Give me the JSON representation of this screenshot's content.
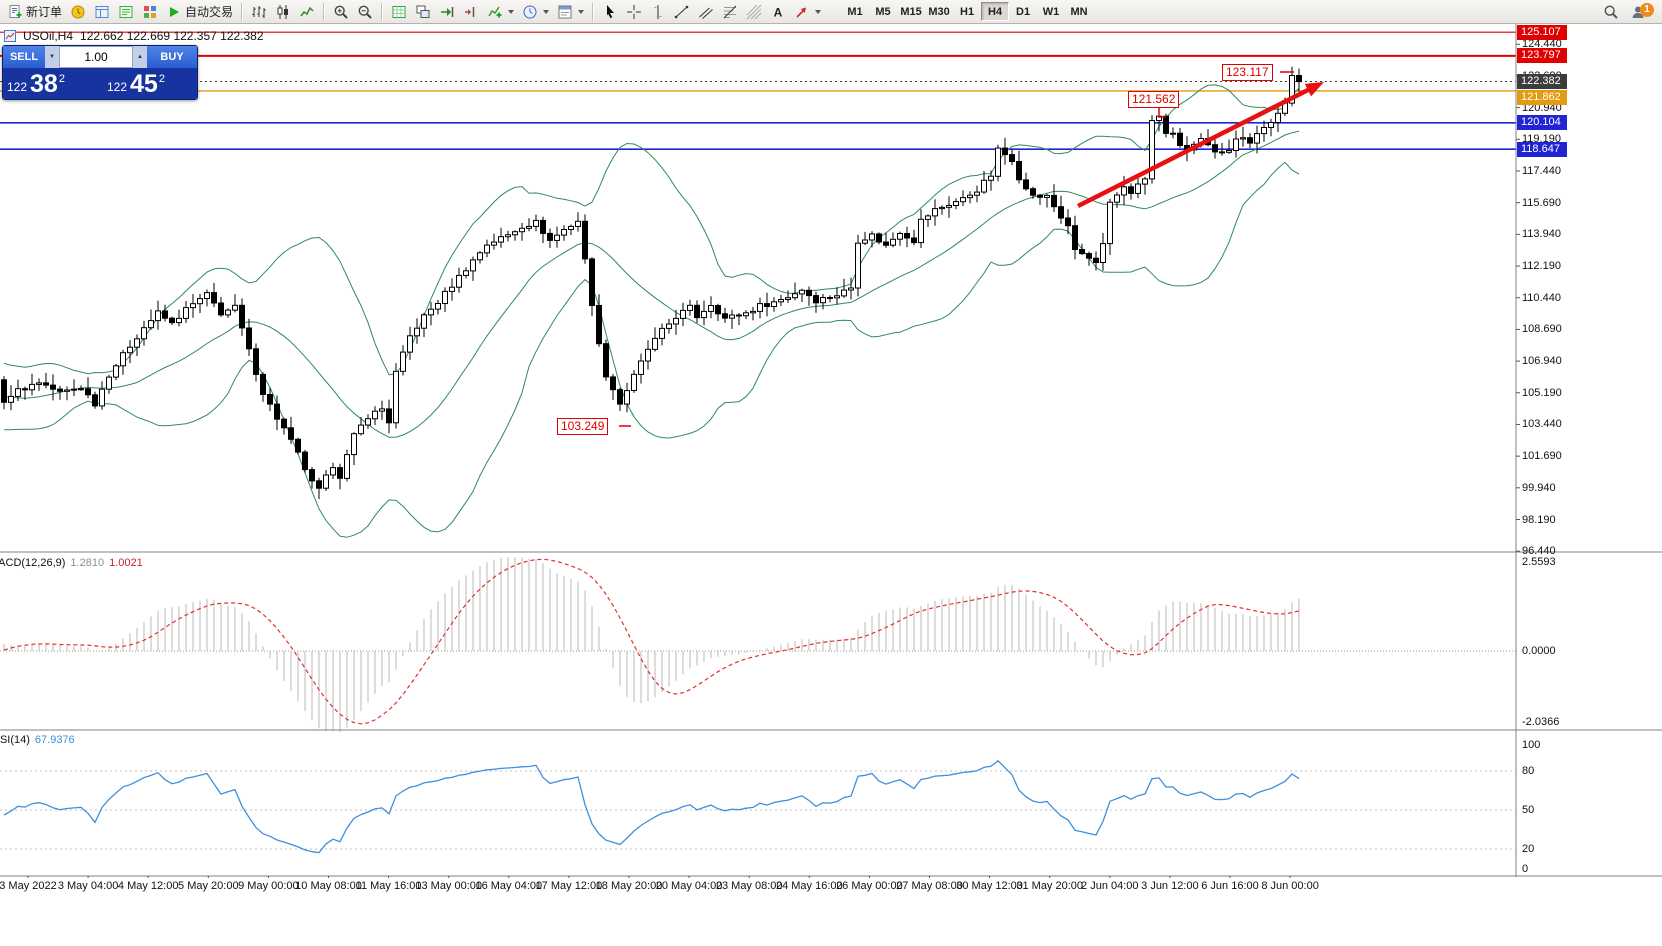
{
  "toolbar": {
    "new_order": {
      "icon": "new-order",
      "label": "新订单"
    },
    "window_buttons": [
      {
        "icon": "market-watch"
      },
      {
        "icon": "data-window"
      },
      {
        "icon": "navigator"
      },
      {
        "icon": "terminal"
      }
    ],
    "autotrading": {
      "icon": "autotrading",
      "label": "自动交易"
    },
    "chart_type_buttons": [
      {
        "icon": "bar-chart"
      },
      {
        "icon": "candlesticks"
      },
      {
        "icon": "line-chart"
      }
    ],
    "zoom_buttons": [
      {
        "icon": "zoom-in"
      },
      {
        "icon": "zoom-out"
      }
    ],
    "layout_buttons": [
      {
        "icon": "new-chart"
      },
      {
        "icon": "tile-windows"
      },
      {
        "icon": "auto-scroll"
      },
      {
        "icon": "chart-shift"
      }
    ],
    "dropdown_buttons": [
      {
        "icon": "indicators",
        "dropdown": true
      },
      {
        "icon": "periods",
        "dropdown": true
      },
      {
        "icon": "templates",
        "dropdown": true
      }
    ],
    "drawing_buttons": [
      {
        "icon": "cursor"
      },
      {
        "icon": "crosshair"
      },
      {
        "icon": "vertical-line"
      },
      {
        "icon": "trendline"
      },
      {
        "icon": "equidistant-channel"
      },
      {
        "icon": "fibonacci"
      },
      {
        "icon": "gann-grid"
      },
      {
        "icon": "text"
      },
      {
        "icon": "arrows",
        "dropdown": true
      }
    ],
    "timeframes": [
      "M1",
      "M5",
      "M15",
      "M30",
      "H1",
      "H4",
      "D1",
      "W1",
      "MN"
    ],
    "active_timeframe": "H4",
    "search": {
      "icon": "search"
    },
    "notifications": {
      "icon": "community",
      "badge": "1"
    }
  },
  "chart": {
    "symbol_period": "USOil,H4",
    "ohlc_text": "122.662 122.669 122.357 122.382"
  },
  "trade_panel": {
    "sell_label": "SELL",
    "buy_label": "BUY",
    "volume": "1.00",
    "spin_down": "▼",
    "spin_up": "▲",
    "bid": {
      "big": "122",
      "pips": "38",
      "pt": "2"
    },
    "ask": {
      "big": "122",
      "pips": "45",
      "pt": "2"
    }
  },
  "annotations": [
    {
      "text": "123.117"
    },
    {
      "text": "121.562"
    },
    {
      "text": "103.249"
    }
  ],
  "price_axis": {
    "ticks": [
      "124.440",
      "122.690",
      "120.940",
      "119.190",
      "117.440",
      "115.690",
      "113.940",
      "112.190",
      "110.440",
      "108.690",
      "106.940",
      "105.190",
      "103.440",
      "101.690",
      "99.940",
      "98.190",
      "96.440"
    ],
    "levels": [
      {
        "text": "125.107",
        "value": 125.107,
        "type": "red_level",
        "width": 1.2,
        "dash": false
      },
      {
        "text": "123.797",
        "value": 123.797,
        "type": "red_level",
        "width": 2,
        "dash": false
      },
      {
        "text": "122.382",
        "value": 122.382,
        "type": "current_price",
        "width": 1,
        "dash": true
      },
      {
        "text": "121.862",
        "value": 121.862,
        "type": "orange_level",
        "width": 1.4,
        "dash": false
      },
      {
        "text": "120.104",
        "value": 120.104,
        "type": "blue_level",
        "width": 1.6,
        "dash": false
      },
      {
        "text": "118.647",
        "value": 118.647,
        "type": "blue_level",
        "width": 1.6,
        "dash": false
      }
    ]
  },
  "time_axis": {
    "labels": [
      "3 May 2022",
      "3 May 04:00",
      "4 May 12:00",
      "5 May 20:00",
      "9 May 00:00",
      "10 May 08:00",
      "11 May 16:00",
      "13 May 00:00",
      "16 May 04:00",
      "17 May 12:00",
      "18 May 20:00",
      "20 May 04:00",
      "23 May 08:00",
      "24 May 16:00",
      "26 May 00:00",
      "27 May 08:00",
      "30 May 12:00",
      "31 May 20:00",
      "2 Jun 04:00",
      "3 Jun 12:00",
      "6 Jun 16:00",
      "8 Jun 00:00"
    ]
  },
  "macd_panel": {
    "name": "MACD(12,26,9)",
    "value1": "1.2810",
    "value2": "1.0021",
    "axis_labels": [
      "2.5593",
      "0.0000",
      "-2.0366"
    ]
  },
  "rsi_panel": {
    "name": "RSI(14)",
    "value": "67.9376",
    "axis_labels": [
      "100",
      "80",
      "50",
      "20",
      "0"
    ],
    "levels": [
      80,
      50,
      20
    ]
  },
  "colors": {
    "red_level": "#e00000",
    "orange_level": "#e39c11",
    "blue_level": "#2323d6",
    "current_price": "#3c3c3c",
    "bands": "#2E8B57",
    "macd_hist": "#b9b9b9",
    "macd_signal": "#e03030",
    "rsi_line": "#3f8fde",
    "arrow": "#e81010",
    "annotation": "#e00000"
  },
  "chart_data": {
    "type": "candlestick",
    "symbol": "USOil",
    "period": "H4",
    "indicators": [
      "Bollinger Bands(20,2)",
      "MACD(12,26,9)",
      "RSI(14)"
    ],
    "price_range": [
      96.44,
      125.107
    ],
    "n_candles": 186,
    "last_close": 122.382,
    "bollinger_period": 20,
    "bollinger_deviation": 2,
    "close_path": [
      [
        0,
        104.8
      ],
      [
        2,
        105.3
      ],
      [
        5,
        105.8
      ],
      [
        8,
        105.2
      ],
      [
        11,
        105.5
      ],
      [
        13,
        104.6
      ],
      [
        15,
        106.2
      ],
      [
        18,
        107.8
      ],
      [
        20,
        108.8
      ],
      [
        22,
        109.6
      ],
      [
        24,
        109.0
      ],
      [
        26,
        109.8
      ],
      [
        29,
        110.6
      ],
      [
        31,
        109.6
      ],
      [
        33,
        109.9
      ],
      [
        35,
        107.5
      ],
      [
        37,
        105.2
      ],
      [
        39,
        103.8
      ],
      [
        40,
        103.2
      ],
      [
        42,
        101.8
      ],
      [
        44,
        100.2
      ],
      [
        45,
        99.8
      ],
      [
        47,
        101.2
      ],
      [
        48,
        100.6
      ],
      [
        50,
        102.8
      ],
      [
        52,
        103.9
      ],
      [
        54,
        104.3
      ],
      [
        55,
        103.6
      ],
      [
        56,
        106.3
      ],
      [
        58,
        108.3
      ],
      [
        60,
        109.4
      ],
      [
        62,
        110.2
      ],
      [
        65,
        111.6
      ],
      [
        67,
        112.5
      ],
      [
        69,
        113.4
      ],
      [
        72,
        113.9
      ],
      [
        74,
        114.4
      ],
      [
        76,
        114.6
      ],
      [
        78,
        113.6
      ],
      [
        80,
        114.2
      ],
      [
        82,
        114.7
      ],
      [
        83,
        112.5
      ],
      [
        85,
        107.8
      ],
      [
        86,
        106.2
      ],
      [
        88,
        104.6
      ],
      [
        90,
        106.1
      ],
      [
        92,
        107.6
      ],
      [
        94,
        108.6
      ],
      [
        96,
        109.4
      ],
      [
        98,
        109.9
      ],
      [
        99,
        109.4
      ],
      [
        101,
        110.1
      ],
      [
        103,
        109.3
      ],
      [
        106,
        109.6
      ],
      [
        108,
        110.0
      ],
      [
        110,
        110.2
      ],
      [
        112,
        110.5
      ],
      [
        114,
        110.9
      ],
      [
        116,
        110.3
      ],
      [
        119,
        110.6
      ],
      [
        121,
        111.0
      ],
      [
        122,
        113.6
      ],
      [
        124,
        113.9
      ],
      [
        126,
        113.3
      ],
      [
        128,
        114.1
      ],
      [
        130,
        113.6
      ],
      [
        131,
        114.7
      ],
      [
        133,
        115.3
      ],
      [
        135,
        115.6
      ],
      [
        137,
        115.9
      ],
      [
        139,
        116.4
      ],
      [
        141,
        117.2
      ],
      [
        142,
        118.6
      ],
      [
        144,
        118.1
      ],
      [
        145,
        117.1
      ],
      [
        146,
        116.4
      ],
      [
        148,
        115.9
      ],
      [
        149,
        116.1
      ],
      [
        150,
        115.5
      ],
      [
        152,
        114.3
      ],
      [
        153,
        113.1
      ],
      [
        155,
        112.6
      ],
      [
        156,
        112.3
      ],
      [
        157,
        113.3
      ],
      [
        158,
        115.6
      ],
      [
        160,
        116.6
      ],
      [
        161,
        116.3
      ],
      [
        163,
        117.0
      ],
      [
        164,
        120.2
      ],
      [
        165,
        120.4
      ],
      [
        166,
        119.6
      ],
      [
        167,
        119.4
      ],
      [
        168,
        118.9
      ],
      [
        169,
        118.6
      ],
      [
        171,
        119.1
      ],
      [
        172,
        118.8
      ],
      [
        173,
        118.4
      ],
      [
        175,
        118.7
      ],
      [
        176,
        119.3
      ],
      [
        178,
        119.1
      ],
      [
        179,
        119.6
      ],
      [
        181,
        120.1
      ],
      [
        182,
        120.7
      ],
      [
        183,
        121.1
      ],
      [
        184,
        122.6
      ],
      [
        185,
        122.382
      ]
    ]
  }
}
